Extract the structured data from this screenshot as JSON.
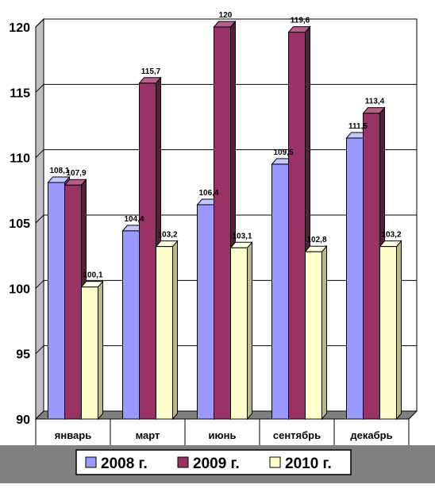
{
  "chart_data": {
    "type": "bar",
    "categories": [
      "январь",
      "март",
      "июнь",
      "сентябрь",
      "декабрь"
    ],
    "series": [
      {
        "name": "2008 г.",
        "values": [
          108.1,
          104.4,
          106.4,
          109.5,
          111.5
        ],
        "labels": [
          "108,1",
          "104,4",
          "106,4",
          "109,5",
          "111,5"
        ]
      },
      {
        "name": "2009 г.",
        "values": [
          107.9,
          115.7,
          120,
          119.6,
          113.4
        ],
        "labels": [
          "107,9",
          "115,7",
          "120",
          "119,6",
          "113,4"
        ]
      },
      {
        "name": "2010 г.",
        "values": [
          100.1,
          103.2,
          103.1,
          102.8,
          103.2
        ],
        "labels": [
          "100,1",
          "103,2",
          "103,1",
          "102,8",
          "103,2"
        ]
      }
    ],
    "ylim": [
      90,
      120
    ],
    "yticks": [
      "90",
      "95",
      "100",
      "105",
      "110",
      "115",
      "120"
    ],
    "grid": true,
    "three_d": true,
    "legend_position": "bottom",
    "colors": {
      "series": [
        "#9999ff",
        "#993366",
        "#ffffcc"
      ],
      "series_side": [
        "#5c5cb0",
        "#5a1e3c",
        "#b8b890"
      ],
      "series_top": [
        "#c6c6ff",
        "#b5608a",
        "#ffffe8"
      ],
      "back_wall": "#ffffff",
      "side_wall": "#c0c0c0",
      "floor": "#7f7f7f",
      "legend_band": "#808080"
    }
  }
}
